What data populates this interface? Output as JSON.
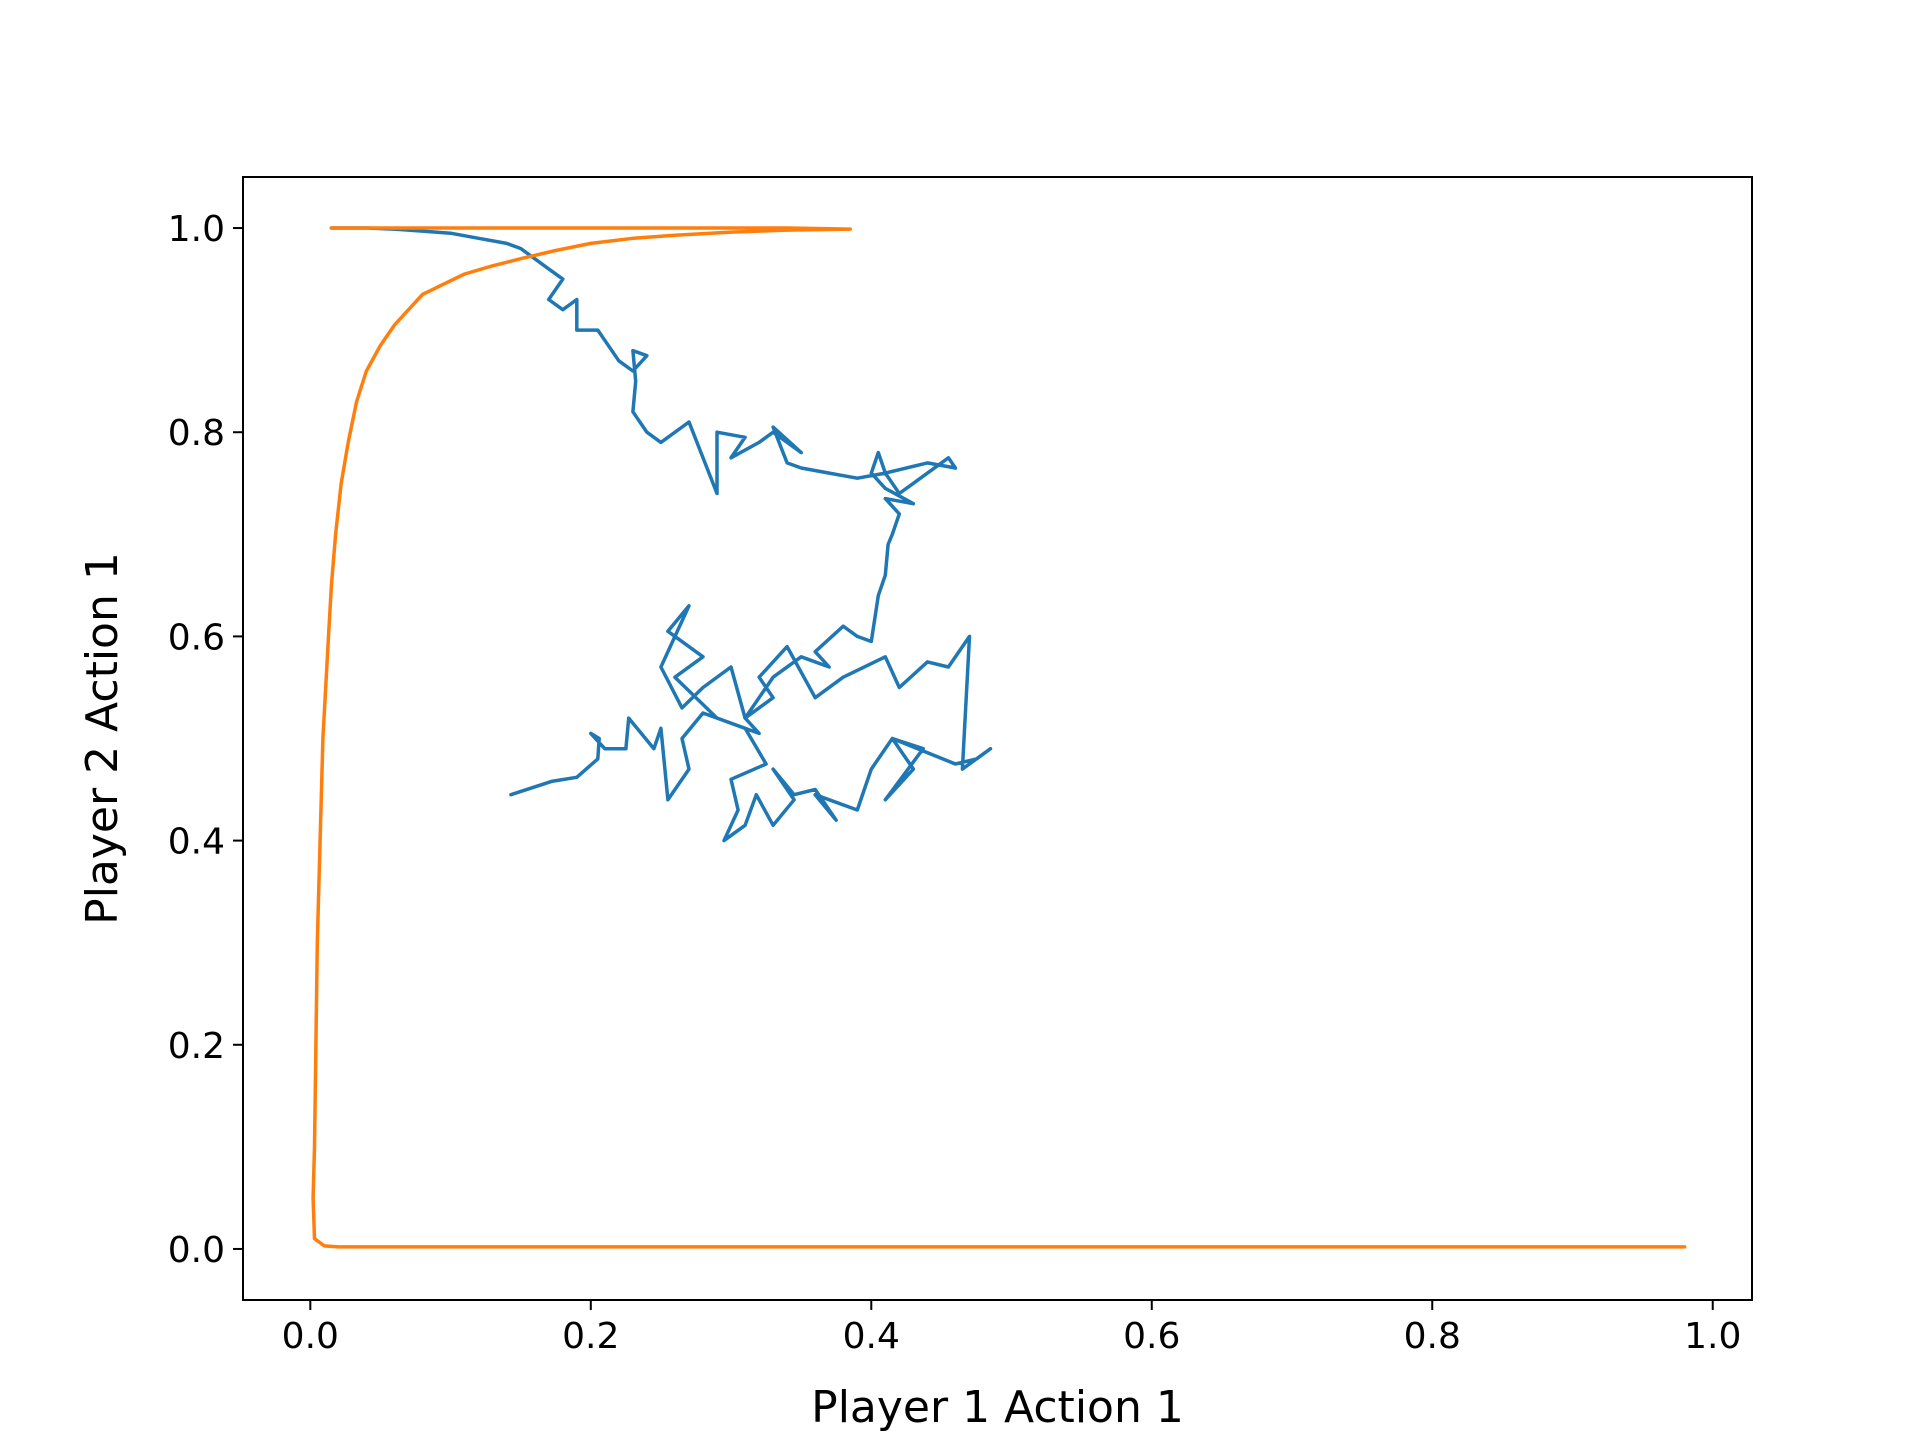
{
  "chart_data": {
    "type": "line",
    "title": "",
    "xlabel": "Player 1 Action 1",
    "ylabel": "Player 2 Action 1",
    "xlim": [
      -0.048,
      1.028
    ],
    "ylim": [
      -0.05,
      1.05
    ],
    "xticks": [
      0.0,
      0.2,
      0.4,
      0.6,
      0.8,
      1.0
    ],
    "xtick_labels": [
      "0.0",
      "0.2",
      "0.4",
      "0.6",
      "0.8",
      "1.0"
    ],
    "yticks": [
      0.0,
      0.2,
      0.4,
      0.6,
      0.8,
      1.0
    ],
    "ytick_labels": [
      "0.0",
      "0.2",
      "0.4",
      "0.6",
      "0.8",
      "1.0"
    ],
    "grid": false,
    "legend": false,
    "series": [
      {
        "color": "#1f77b4",
        "x": [
          0.143,
          0.172,
          0.19,
          0.205,
          0.206,
          0.2,
          0.21,
          0.225,
          0.227,
          0.245,
          0.25,
          0.255,
          0.27,
          0.265,
          0.28,
          0.31,
          0.325,
          0.3,
          0.305,
          0.295,
          0.31,
          0.318,
          0.33,
          0.345,
          0.33,
          0.345,
          0.36,
          0.375,
          0.36,
          0.39,
          0.4,
          0.415,
          0.43,
          0.41,
          0.437,
          0.415,
          0.46,
          0.475,
          0.485,
          0.465,
          0.47,
          0.455,
          0.44,
          0.42,
          0.41,
          0.38,
          0.36,
          0.34,
          0.32,
          0.33,
          0.31,
          0.32,
          0.29,
          0.26,
          0.28,
          0.255,
          0.27,
          0.25,
          0.265,
          0.28,
          0.3,
          0.31,
          0.33,
          0.35,
          0.37,
          0.36,
          0.38,
          0.39,
          0.4,
          0.405,
          0.41,
          0.412,
          0.415,
          0.42,
          0.41,
          0.43,
          0.41,
          0.4,
          0.405,
          0.41,
          0.44,
          0.46,
          0.455,
          0.43,
          0.42,
          0.41,
          0.39,
          0.37,
          0.35,
          0.34,
          0.33,
          0.35,
          0.33,
          0.32,
          0.3,
          0.31,
          0.29,
          0.29,
          0.27,
          0.25,
          0.24,
          0.23,
          0.232,
          0.23,
          0.24,
          0.23,
          0.22,
          0.21,
          0.205,
          0.19,
          0.19,
          0.18,
          0.17,
          0.18,
          0.17,
          0.16,
          0.15,
          0.14,
          0.12,
          0.1,
          0.08,
          0.06,
          0.04,
          0.015
        ],
        "y": [
          0.445,
          0.458,
          0.462,
          0.48,
          0.5,
          0.505,
          0.49,
          0.49,
          0.52,
          0.49,
          0.51,
          0.44,
          0.47,
          0.5,
          0.525,
          0.51,
          0.475,
          0.46,
          0.43,
          0.4,
          0.415,
          0.445,
          0.415,
          0.44,
          0.47,
          0.445,
          0.45,
          0.42,
          0.445,
          0.43,
          0.47,
          0.5,
          0.47,
          0.44,
          0.49,
          0.5,
          0.475,
          0.48,
          0.49,
          0.47,
          0.6,
          0.57,
          0.575,
          0.55,
          0.58,
          0.56,
          0.54,
          0.59,
          0.56,
          0.54,
          0.52,
          0.505,
          0.52,
          0.56,
          0.58,
          0.605,
          0.63,
          0.57,
          0.53,
          0.55,
          0.57,
          0.52,
          0.56,
          0.58,
          0.57,
          0.585,
          0.61,
          0.6,
          0.595,
          0.64,
          0.66,
          0.69,
          0.7,
          0.72,
          0.735,
          0.73,
          0.745,
          0.76,
          0.78,
          0.76,
          0.77,
          0.765,
          0.775,
          0.75,
          0.74,
          0.76,
          0.755,
          0.76,
          0.765,
          0.77,
          0.805,
          0.78,
          0.8,
          0.79,
          0.775,
          0.795,
          0.8,
          0.74,
          0.81,
          0.79,
          0.8,
          0.82,
          0.85,
          0.88,
          0.875,
          0.86,
          0.87,
          0.89,
          0.9,
          0.9,
          0.93,
          0.92,
          0.93,
          0.95,
          0.96,
          0.97,
          0.98,
          0.985,
          0.99,
          0.995,
          0.997,
          0.999,
          1.0,
          1.0
        ]
      },
      {
        "color": "#ff7f0e",
        "x": [
          0.98,
          0.9,
          0.8,
          0.7,
          0.6,
          0.5,
          0.4,
          0.3,
          0.2,
          0.1,
          0.05,
          0.02,
          0.01,
          0.003,
          0.002,
          0.003,
          0.004,
          0.005,
          0.007,
          0.009,
          0.011,
          0.013,
          0.015,
          0.018,
          0.022,
          0.027,
          0.033,
          0.04,
          0.05,
          0.06,
          0.07,
          0.08,
          0.095,
          0.11,
          0.13,
          0.15,
          0.175,
          0.2,
          0.23,
          0.26,
          0.3,
          0.34,
          0.385,
          0.34,
          0.3,
          0.26,
          0.22,
          0.18,
          0.14,
          0.1,
          0.06,
          0.03,
          0.015
        ],
        "y": [
          0.002,
          0.002,
          0.002,
          0.002,
          0.002,
          0.002,
          0.002,
          0.002,
          0.002,
          0.002,
          0.002,
          0.002,
          0.003,
          0.01,
          0.05,
          0.1,
          0.2,
          0.3,
          0.4,
          0.5,
          0.55,
          0.6,
          0.65,
          0.7,
          0.75,
          0.79,
          0.83,
          0.86,
          0.885,
          0.905,
          0.92,
          0.935,
          0.945,
          0.955,
          0.963,
          0.97,
          0.978,
          0.985,
          0.99,
          0.993,
          0.996,
          0.998,
          0.999,
          1.0,
          1.0,
          1.0,
          1.0,
          1.0,
          1.0,
          1.0,
          1.0,
          1.0,
          1.0
        ]
      }
    ]
  }
}
